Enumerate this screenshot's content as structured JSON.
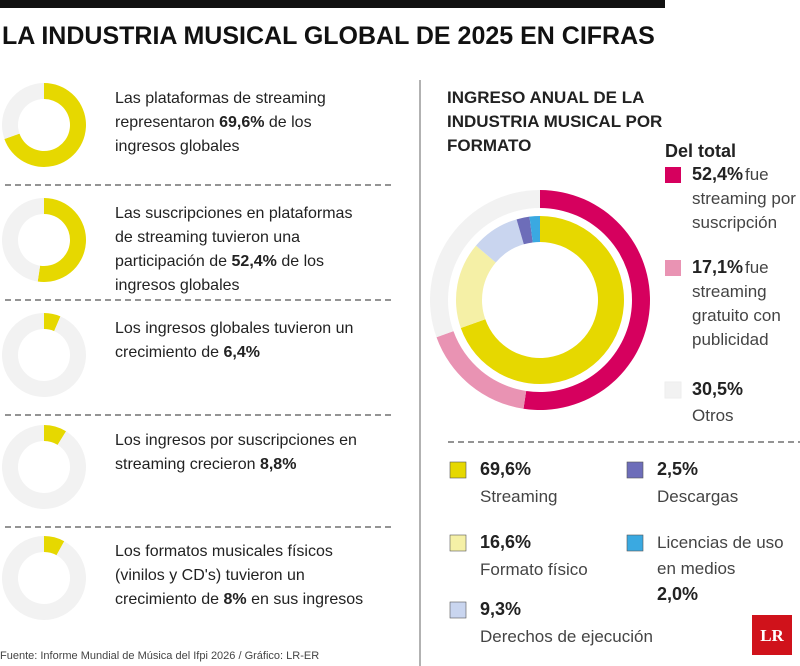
{
  "title": "LA INDUSTRIA MUSICAL GLOBAL DE 2025 EN CIFRAS",
  "source": "Fuente: Informe Mundial de Música del Ifpi 2026 / Gráfico: LR-ER",
  "logo": "LR",
  "chart_data": [
    {
      "type": "donut",
      "text_before": "Las plataformas de streaming representaron",
      "text_after": "de los ingresos globales",
      "values": [
        69.6,
        30.4
      ],
      "value_labels": [
        "69,6%",
        null
      ],
      "colors": [
        "#e6d800",
        "#f2f2f2"
      ]
    },
    {
      "type": "donut",
      "text_before": "Las suscripciones en plataformas de streaming tuvieron una participación de",
      "text_after": "de los ingresos globales",
      "values": [
        52.4,
        47.6
      ],
      "value_labels": [
        "52,4%",
        null
      ],
      "colors": [
        "#e6d800",
        "#f2f2f2"
      ]
    },
    {
      "type": "donut",
      "text_before": "Los ingresos globales tuvieron un crecimiento de",
      "values": [
        6.4,
        93.6
      ],
      "value_labels": [
        "6,4%",
        null
      ],
      "colors": [
        "#e6d800",
        "#f2f2f2"
      ]
    },
    {
      "type": "donut",
      "text_before": "Los ingresos por suscripciones en streaming crecieron",
      "values": [
        8.8,
        91.2
      ],
      "value_labels": [
        "8,8%",
        null
      ],
      "colors": [
        "#e6d800",
        "#f2f2f2"
      ]
    },
    {
      "type": "donut",
      "text_before": "Los formatos musicales físicos (vinilos y CD's) tuvieron un crecimiento de",
      "text_after": "en sus ingresos",
      "values": [
        8,
        92
      ],
      "value_labels": [
        "8%",
        null
      ],
      "colors": [
        "#e6d800",
        "#f2f2f2"
      ]
    },
    {
      "type": "nested-donut",
      "title": "INGRESO ANUAL DE LA INDUSTRIA MUSICAL POR FORMATO",
      "legend_title": "Del total",
      "rings": [
        {
          "categories": [
            "fue streaming por suscripción",
            "fue streaming gratuito con publicidad",
            "Otros"
          ],
          "values": [
            52.4,
            17.1,
            30.5
          ],
          "value_labels": [
            "52,4%",
            "17,1%",
            "30,5%"
          ],
          "colors": [
            "#d6005e",
            "#e993b3",
            "#f2f2f2"
          ]
        },
        {
          "categories": [
            "Streaming",
            "Formato físico",
            "Derechos de ejecución",
            "Descargas",
            "Licencias de uso en medios"
          ],
          "values": [
            69.6,
            16.6,
            9.3,
            2.5,
            2.0
          ],
          "value_labels": [
            "69,6%",
            "16,6%",
            "9,3%",
            "2,5%",
            "2,0%"
          ],
          "colors": [
            "#e6d800",
            "#f5f0a6",
            "#c9d5ef",
            "#6d6db9",
            "#3aa9e1"
          ]
        }
      ]
    }
  ]
}
